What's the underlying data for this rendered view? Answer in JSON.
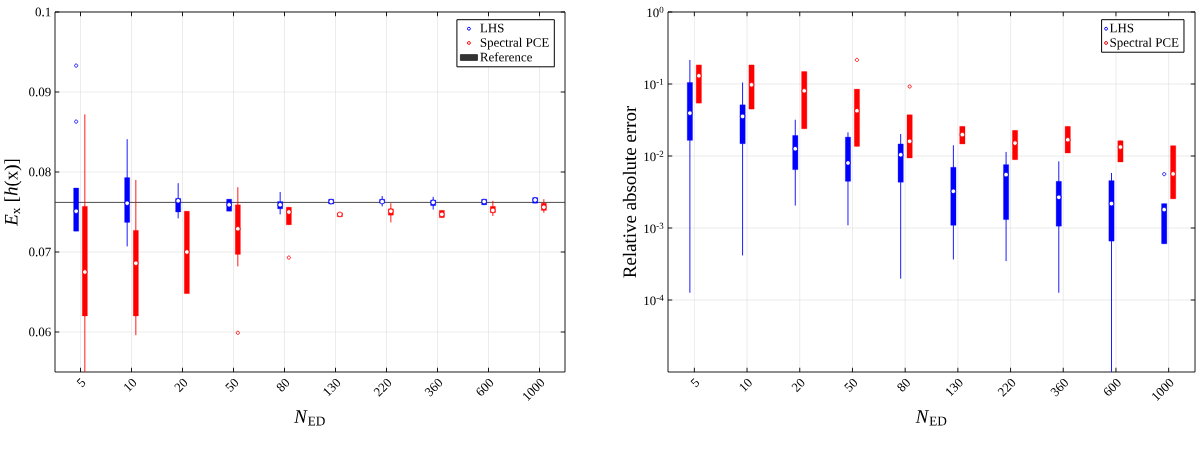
{
  "chart_data": [
    {
      "type": "box",
      "xlabel": "*N*$_{ED}$",
      "ylabel": "*E*$_{x}$ [*h*(x)]",
      "categories": [
        "5",
        "10",
        "20",
        "50",
        "80",
        "130",
        "220",
        "360",
        "600",
        "1000"
      ],
      "ylim": [
        0.055,
        0.1
      ],
      "yticks": [
        0.06,
        0.07,
        0.08,
        0.09,
        0.1
      ],
      "grid": true,
      "legend": "top right",
      "ref_lines": [
        {
          "axis": "y",
          "value": 0.0762,
          "label": "Reference",
          "color": "#333333"
        }
      ],
      "series": [
        {
          "name": "LHS",
          "color": "#0000ff",
          "boxes": [
            {
              "low": 0.0726,
              "q1": 0.0726,
              "median": 0.0751,
              "q3": 0.078,
              "high": 0.078,
              "outliers": [
                0.0933,
                0.0863
              ]
            },
            {
              "low": 0.0707,
              "q1": 0.0737,
              "median": 0.0761,
              "q3": 0.0793,
              "high": 0.0841
            },
            {
              "low": 0.0742,
              "q1": 0.075,
              "median": 0.0764,
              "q3": 0.0767,
              "high": 0.0786
            },
            {
              "low": 0.0751,
              "q1": 0.0751,
              "median": 0.0759,
              "q3": 0.0766,
              "high": 0.0766
            },
            {
              "low": 0.0747,
              "q1": 0.0754,
              "median": 0.0759,
              "q3": 0.0763,
              "high": 0.0775
            },
            {
              "low": 0.076,
              "q1": 0.076,
              "median": 0.0763,
              "q3": 0.0766,
              "high": 0.0766
            },
            {
              "low": 0.0757,
              "q1": 0.0761,
              "median": 0.0763,
              "q3": 0.0766,
              "high": 0.077
            },
            {
              "low": 0.0753,
              "q1": 0.0758,
              "median": 0.0762,
              "q3": 0.0765,
              "high": 0.0769
            },
            {
              "low": 0.0759,
              "q1": 0.0759,
              "median": 0.0763,
              "q3": 0.0766,
              "high": 0.0766
            },
            {
              "low": 0.0761,
              "q1": 0.0761,
              "median": 0.0765,
              "q3": 0.0768,
              "high": 0.0768
            }
          ]
        },
        {
          "name": "Spectral PCE",
          "color": "#ff0000",
          "boxes": [
            {
              "low": 0.055,
              "q1": 0.062,
              "median": 0.0675,
              "q3": 0.0757,
              "high": 0.0872
            },
            {
              "low": 0.0596,
              "q1": 0.062,
              "median": 0.0686,
              "q3": 0.0727,
              "high": 0.079
            },
            {
              "low": 0.0648,
              "q1": 0.0648,
              "median": 0.07,
              "q3": 0.0751,
              "high": 0.0751
            },
            {
              "low": 0.0682,
              "q1": 0.0697,
              "median": 0.0729,
              "q3": 0.0759,
              "high": 0.0781,
              "outliers": [
                0.0599
              ]
            },
            {
              "low": 0.0734,
              "q1": 0.0734,
              "median": 0.075,
              "q3": 0.0756,
              "high": 0.0756,
              "outliers": [
                0.0693
              ]
            },
            {
              "low": 0.0744,
              "q1": 0.0744,
              "median": 0.0747,
              "q3": 0.0749,
              "high": 0.0749
            },
            {
              "low": 0.0737,
              "q1": 0.0746,
              "median": 0.0751,
              "q3": 0.0754,
              "high": 0.0761
            },
            {
              "low": 0.0743,
              "q1": 0.0743,
              "median": 0.0747,
              "q3": 0.0752,
              "high": 0.0752
            },
            {
              "low": 0.0745,
              "q1": 0.0749,
              "median": 0.0752,
              "q3": 0.0757,
              "high": 0.0764
            },
            {
              "low": 0.0749,
              "q1": 0.0752,
              "median": 0.0756,
              "q3": 0.0761,
              "high": 0.0766
            }
          ]
        }
      ]
    },
    {
      "type": "box",
      "xlabel": "*N*$_{ED}$",
      "ylabel": "Relative absolute error",
      "log": true,
      "categories": [
        "5",
        "10",
        "20",
        "50",
        "80",
        "130",
        "220",
        "360",
        "600",
        "1000"
      ],
      "ylim": [
        1e-05,
        1
      ],
      "yticks": [
        {
          "value": 1,
          "label": "10$^{0}$"
        },
        {
          "value": 0.1,
          "label": "10$^{-1}$"
        },
        {
          "value": 0.01,
          "label": "10$^{-2}$"
        },
        {
          "value": 0.001,
          "label": "10$^{-3}$"
        },
        {
          "value": 0.0001,
          "label": "10$^{-4}$"
        }
      ],
      "grid": true,
      "legend": "top right",
      "series": [
        {
          "name": "LHS",
          "color": "#0000ff",
          "boxes": [
            {
              "low": 0.000126,
              "q1": 0.0165,
              "median": 0.0394,
              "q3": 0.105,
              "high": 0.216
            },
            {
              "low": 0.000416,
              "q1": 0.0148,
              "median": 0.0355,
              "q3": 0.0514,
              "high": 0.105
            },
            {
              "low": 0.00205,
              "q1": 0.00647,
              "median": 0.0126,
              "q3": 0.0193,
              "high": 0.0319
            },
            {
              "low": 0.00109,
              "q1": 0.00445,
              "median": 0.008,
              "q3": 0.0183,
              "high": 0.0213
            },
            {
              "low": 0.000198,
              "q1": 0.00432,
              "median": 0.0104,
              "q3": 0.0147,
              "high": 0.0202
            },
            {
              "low": 0.000366,
              "q1": 0.00109,
              "median": 0.00324,
              "q3": 0.00697,
              "high": 0.0141
            },
            {
              "low": 0.000347,
              "q1": 0.00131,
              "median": 0.00551,
              "q3": 0.00759,
              "high": 0.0114
            },
            {
              "low": 0.000126,
              "q1": 0.00106,
              "median": 0.00267,
              "q3": 0.00445,
              "high": 0.00843
            },
            {
              "low": 1e-05,
              "q1": 0.000657,
              "median": 0.00218,
              "q3": 0.00455,
              "high": 0.00581
            },
            {
              "low": 0.000604,
              "q1": 0.000604,
              "median": 0.0018,
              "q3": 0.00218,
              "high": 0.00218,
              "outliers": [
                0.0056
              ]
            }
          ]
        },
        {
          "name": "Spectral PCE",
          "color": "#ff0000",
          "boxes": [
            {
              "low": 0.0542,
              "q1": 0.0542,
              "median": 0.13,
              "q3": 0.184,
              "high": 0.184
            },
            {
              "low": 0.0448,
              "q1": 0.0448,
              "median": 0.0973,
              "q3": 0.184,
              "high": 0.184
            },
            {
              "low": 0.0239,
              "q1": 0.0239,
              "median": 0.0804,
              "q3": 0.149,
              "high": 0.149
            },
            {
              "low": 0.0136,
              "q1": 0.0136,
              "median": 0.0425,
              "q3": 0.0848,
              "high": 0.0848,
              "outliers": [
                0.216
              ]
            },
            {
              "low": 0.00938,
              "q1": 0.00938,
              "median": 0.016,
              "q3": 0.0374,
              "high": 0.0374,
              "outliers": [
                0.0923
              ]
            },
            {
              "low": 0.0147,
              "q1": 0.0147,
              "median": 0.0198,
              "q3": 0.0258,
              "high": 0.0258
            },
            {
              "low": 0.00889,
              "q1": 0.00889,
              "median": 0.0151,
              "q3": 0.0227,
              "high": 0.0227
            },
            {
              "low": 0.011,
              "q1": 0.011,
              "median": 0.0168,
              "q3": 0.0258,
              "high": 0.0258
            },
            {
              "low": 0.00826,
              "q1": 0.00826,
              "median": 0.0133,
              "q3": 0.0163,
              "high": 0.0163
            },
            {
              "low": 0.00254,
              "q1": 0.00254,
              "median": 0.00564,
              "q3": 0.0139,
              "high": 0.0139
            }
          ]
        }
      ]
    }
  ]
}
